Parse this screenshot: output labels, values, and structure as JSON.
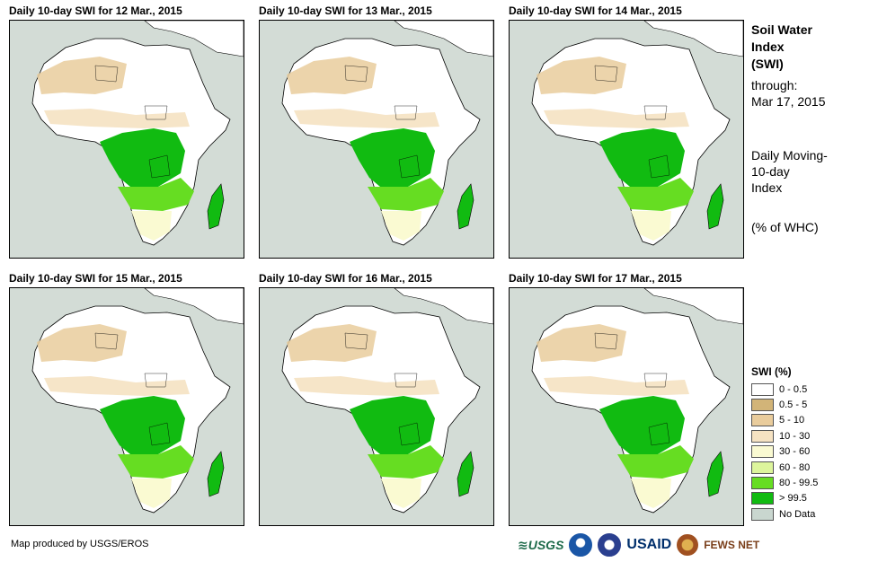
{
  "panels": [
    {
      "title": "Daily 10-day  SWI for 12 Mar., 2015"
    },
    {
      "title": "Daily 10-day  SWI for 13 Mar., 2015"
    },
    {
      "title": "Daily 10-day  SWI for 14 Mar., 2015"
    },
    {
      "title": "Daily 10-day  SWI for 15 Mar., 2015"
    },
    {
      "title": "Daily 10-day  SWI for 16 Mar., 2015"
    },
    {
      "title": "Daily 10-day  SWI for 17 Mar., 2015"
    }
  ],
  "sidebar": {
    "title_line1": "Soil Water",
    "title_line2": "Index",
    "title_line3": "(SWI)",
    "through": "through:",
    "date": "Mar 17, 2015",
    "desc1": "Daily Moving-",
    "desc2": "10-day",
    "desc3": "Index",
    "unit": "(% of WHC)"
  },
  "legend": {
    "title": "SWI (%)",
    "items": [
      {
        "label": "0 - 0.5",
        "color": "#ffffff"
      },
      {
        "label": "0.5 - 5",
        "color": "#d2b478"
      },
      {
        "label": "5 - 10",
        "color": "#e9cc9c"
      },
      {
        "label": "10 - 30",
        "color": "#f5e2c2"
      },
      {
        "label": "30 - 60",
        "color": "#fafad2"
      },
      {
        "label": "60 - 80",
        "color": "#ddf59c"
      },
      {
        "label": "80 - 99.5",
        "color": "#66dd22"
      },
      {
        "label": "> 99.5",
        "color": "#11bb11"
      },
      {
        "label": "No Data",
        "color": "#c9d6cf"
      }
    ]
  },
  "footer": {
    "credit": "Map produced by USGS/EROS"
  },
  "logos": {
    "usgs": "USGS",
    "usaid": "USAID",
    "fews": "FEWS NET"
  }
}
